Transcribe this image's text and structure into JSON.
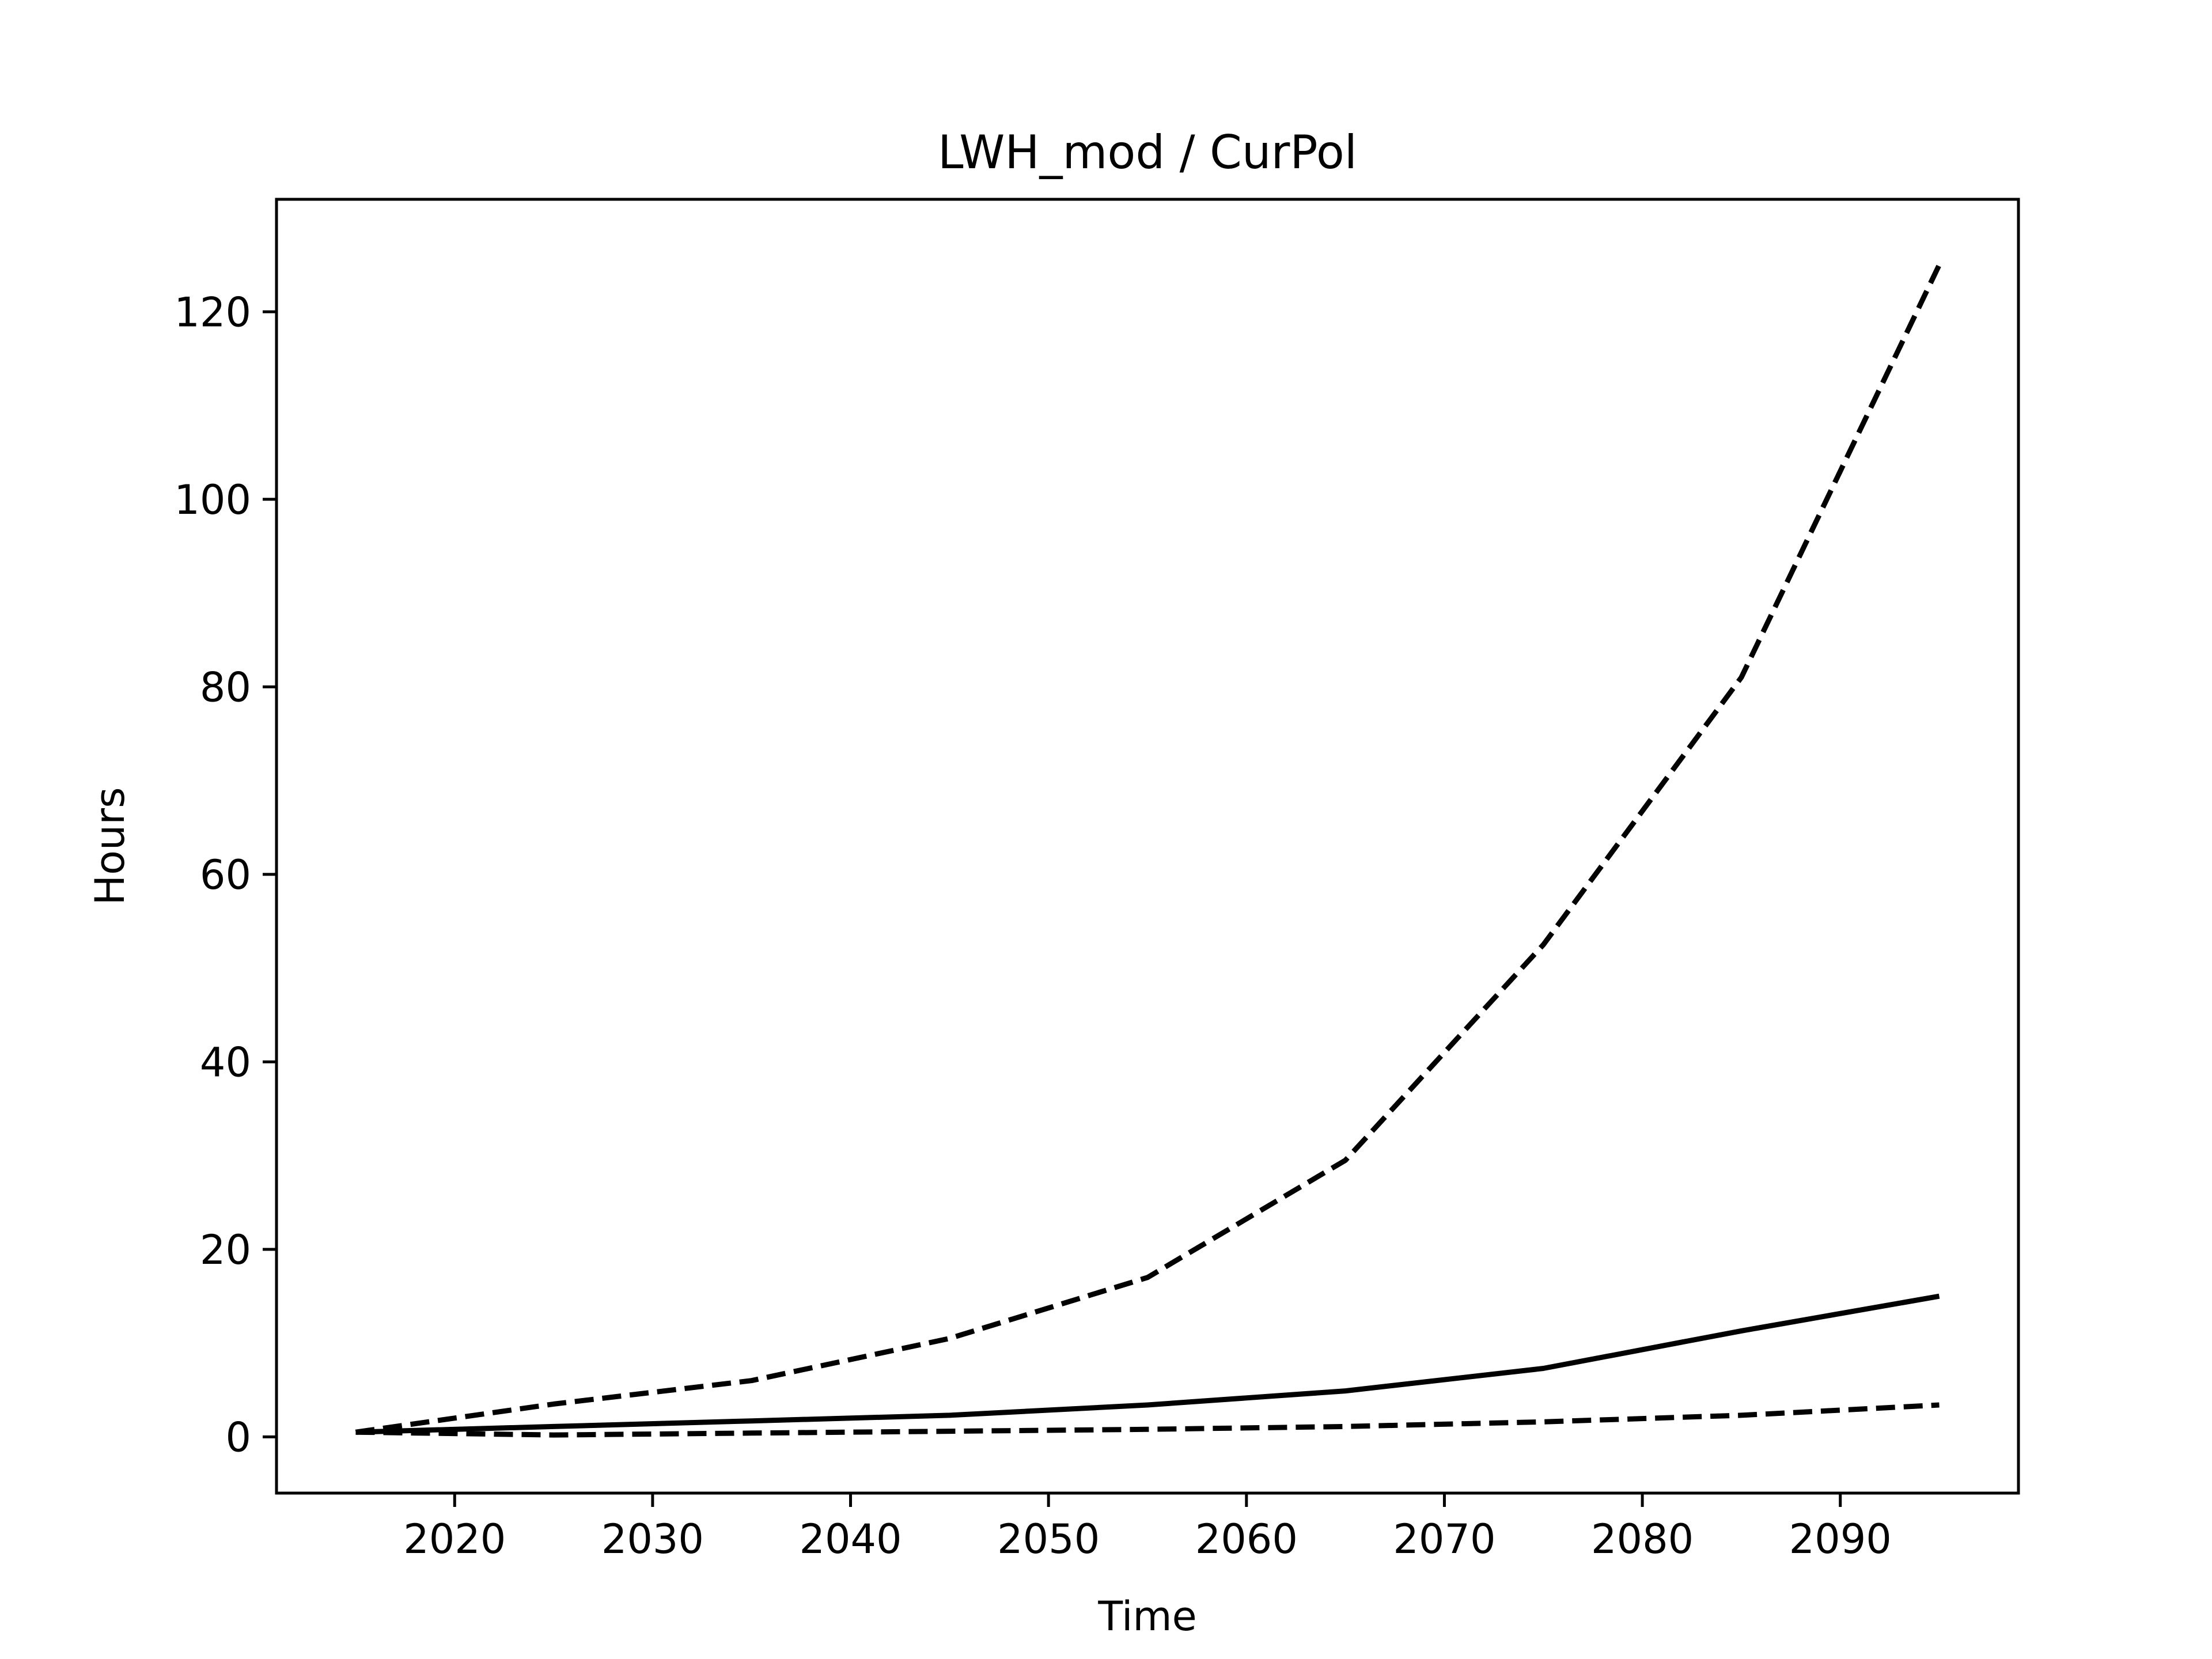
{
  "chart_data": {
    "type": "line",
    "title": "LWH_mod / CurPol",
    "xlabel": "Time",
    "ylabel": "Hours",
    "xlim": [
      2011,
      2099
    ],
    "ylim": [
      -6,
      132
    ],
    "x_ticks": [
      2020,
      2030,
      2040,
      2050,
      2060,
      2070,
      2080,
      2090
    ],
    "y_ticks": [
      0,
      20,
      40,
      60,
      80,
      100,
      120
    ],
    "grid": false,
    "legend": "none",
    "series": [
      {
        "style": "dashed",
        "color": "#000000",
        "x": [
          2015,
          2025,
          2035,
          2045,
          2055,
          2065,
          2075,
          2085,
          2095
        ],
        "y": [
          0.5,
          3.5,
          6.0,
          10.5,
          17.0,
          29.5,
          52.5,
          81.0,
          125.0
        ]
      },
      {
        "style": "solid",
        "color": "#000000",
        "x": [
          2015,
          2025,
          2035,
          2045,
          2055,
          2065,
          2075,
          2085,
          2095
        ],
        "y": [
          0.5,
          1.1,
          1.7,
          2.3,
          3.4,
          4.9,
          7.3,
          11.3,
          15.0
        ]
      },
      {
        "style": "dashed",
        "color": "#000000",
        "x": [
          2015,
          2025,
          2035,
          2045,
          2055,
          2065,
          2075,
          2085,
          2095
        ],
        "y": [
          0.5,
          0.2,
          0.4,
          0.6,
          0.8,
          1.1,
          1.6,
          2.3,
          3.4
        ]
      }
    ]
  }
}
